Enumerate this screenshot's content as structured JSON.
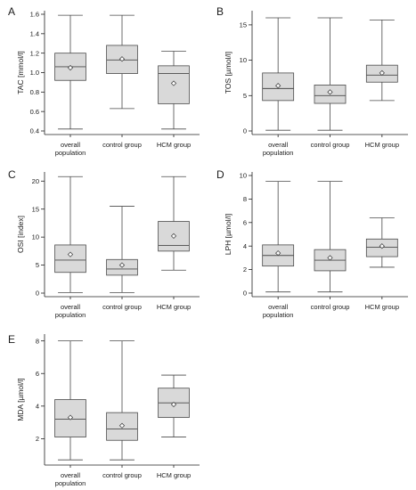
{
  "chart_data": [
    {
      "panel": "A",
      "type": "box",
      "ylabel": "TAC [mmol/l]",
      "ylim": [
        0.4,
        1.6
      ],
      "yticks": [
        0.4,
        0.6,
        0.8,
        1.0,
        1.2,
        1.4,
        1.6
      ],
      "categories": [
        [
          "overall",
          "population"
        ],
        [
          "control group"
        ],
        [
          "HCM group"
        ]
      ],
      "boxes": [
        {
          "min": 0.42,
          "q1": 0.92,
          "median": 1.06,
          "q3": 1.2,
          "max": 1.59,
          "mean": 1.05
        },
        {
          "min": 0.63,
          "q1": 0.99,
          "median": 1.13,
          "q3": 1.28,
          "max": 1.59,
          "mean": 1.14
        },
        {
          "min": 0.42,
          "q1": 0.68,
          "median": 0.99,
          "q3": 1.07,
          "max": 1.22,
          "mean": 0.89
        }
      ]
    },
    {
      "panel": "B",
      "type": "box",
      "ylabel": "TOS [µmol/l]",
      "ylim": [
        0,
        16.5
      ],
      "yticks": [
        0,
        5,
        10,
        15
      ],
      "categories": [
        [
          "overall",
          "population"
        ],
        [
          "control group"
        ],
        [
          "HCM group"
        ]
      ],
      "boxes": [
        {
          "min": 0.1,
          "q1": 4.3,
          "median": 6.0,
          "q3": 8.2,
          "max": 16.0,
          "mean": 6.4
        },
        {
          "min": 0.1,
          "q1": 3.9,
          "median": 5.0,
          "q3": 6.5,
          "max": 16.0,
          "mean": 5.5
        },
        {
          "min": 4.3,
          "q1": 6.9,
          "median": 7.9,
          "q3": 9.3,
          "max": 15.7,
          "mean": 8.2
        }
      ]
    },
    {
      "panel": "C",
      "type": "box",
      "ylabel": "OSI [index]",
      "ylim": [
        0,
        21
      ],
      "yticks": [
        0,
        5,
        10,
        15,
        20
      ],
      "categories": [
        [
          "overall",
          "population"
        ],
        [
          "control group"
        ],
        [
          "HCM group"
        ]
      ],
      "boxes": [
        {
          "min": 0.1,
          "q1": 3.7,
          "median": 5.9,
          "q3": 8.6,
          "max": 20.8,
          "mean": 6.9
        },
        {
          "min": 0.1,
          "q1": 3.2,
          "median": 4.3,
          "q3": 6.0,
          "max": 15.5,
          "mean": 5.0
        },
        {
          "min": 4.1,
          "q1": 7.5,
          "median": 8.5,
          "q3": 12.8,
          "max": 20.8,
          "mean": 10.2
        }
      ]
    },
    {
      "panel": "D",
      "type": "box",
      "ylabel": "LPH [µmol/l]",
      "ylim": [
        0,
        10
      ],
      "yticks": [
        0,
        2,
        4,
        6,
        8,
        10
      ],
      "categories": [
        [
          "overall",
          "population"
        ],
        [
          "control group"
        ],
        [
          "HCM group"
        ]
      ],
      "boxes": [
        {
          "min": 0.1,
          "q1": 2.3,
          "median": 3.2,
          "q3": 4.1,
          "max": 9.5,
          "mean": 3.4
        },
        {
          "min": 0.1,
          "q1": 1.9,
          "median": 2.8,
          "q3": 3.7,
          "max": 9.5,
          "mean": 3.0
        },
        {
          "min": 2.2,
          "q1": 3.1,
          "median": 3.9,
          "q3": 4.6,
          "max": 6.4,
          "mean": 4.0
        }
      ]
    },
    {
      "panel": "E",
      "type": "box",
      "ylabel": "MDA [µmol/l]",
      "ylim": [
        0.6,
        8.2
      ],
      "yticks": [
        2,
        4,
        6,
        8
      ],
      "categories": [
        [
          "overall",
          "population"
        ],
        [
          "control group"
        ],
        [
          "HCM group"
        ]
      ],
      "boxes": [
        {
          "min": 0.7,
          "q1": 2.1,
          "median": 3.2,
          "q3": 4.4,
          "max": 8.0,
          "mean": 3.3
        },
        {
          "min": 0.7,
          "q1": 1.9,
          "median": 2.6,
          "q3": 3.6,
          "max": 8.0,
          "mean": 2.8
        },
        {
          "min": 2.1,
          "q1": 3.3,
          "median": 4.2,
          "q3": 5.1,
          "max": 5.9,
          "mean": 4.1
        }
      ]
    }
  ],
  "style": {
    "box_fill": "#d9d9d9",
    "line_color": "#4a4a4a",
    "mean_marker_fill": "#ffffff"
  }
}
